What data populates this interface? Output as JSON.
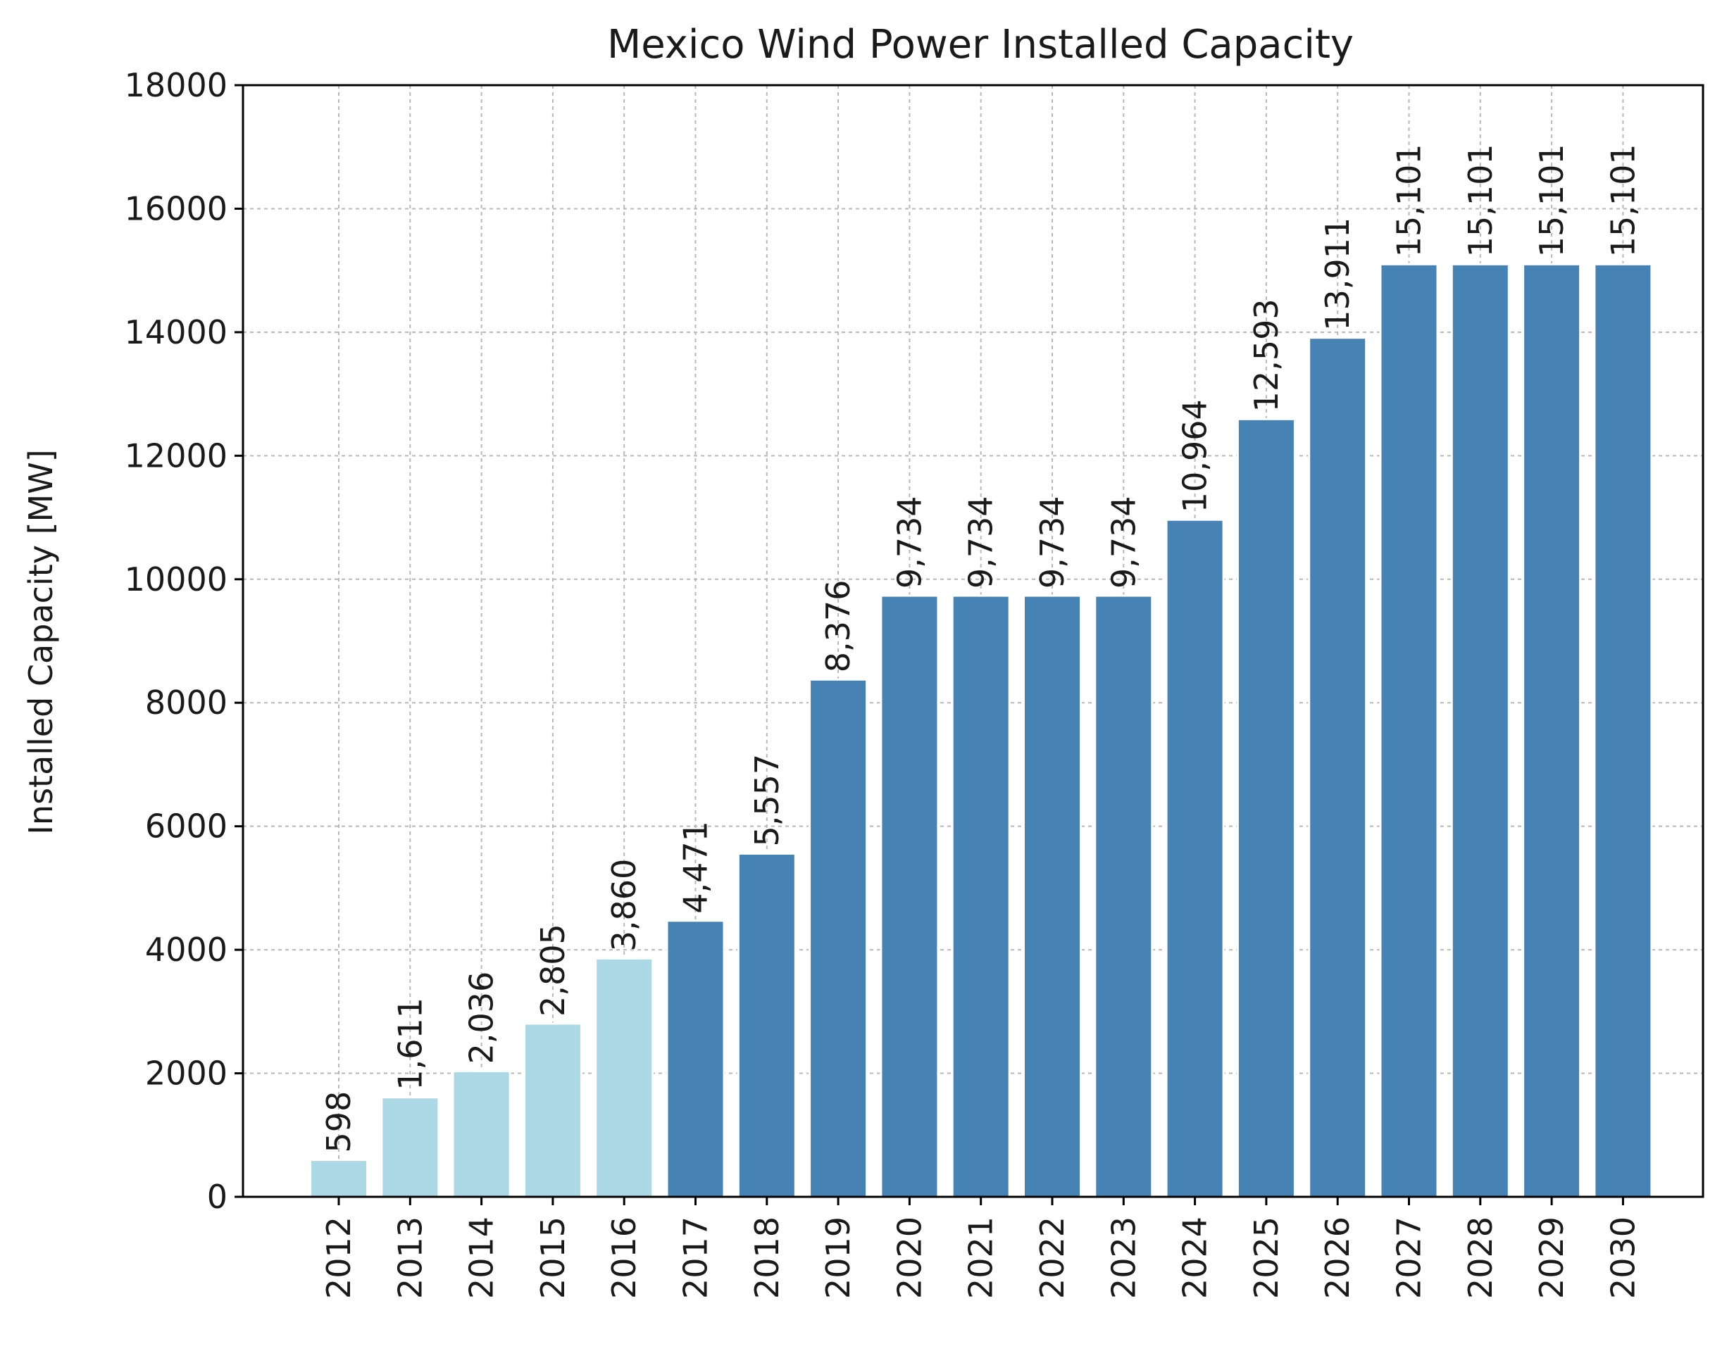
{
  "chart_data": {
    "type": "bar",
    "title": "Mexico Wind Power Installed Capacity",
    "xlabel": "",
    "ylabel": "Installed Capacity [MW]",
    "ylim": [
      0,
      18000
    ],
    "yticks": [
      0,
      2000,
      4000,
      6000,
      8000,
      10000,
      12000,
      14000,
      16000,
      18000
    ],
    "ytick_labels": [
      "0",
      "2000",
      "4000",
      "6000",
      "8000",
      "10000",
      "12000",
      "14000",
      "16000",
      "18000"
    ],
    "grid": true,
    "categories": [
      "2012",
      "2013",
      "2014",
      "2015",
      "2016",
      "2017",
      "2018",
      "2019",
      "2020",
      "2021",
      "2022",
      "2023",
      "2024",
      "2025",
      "2026",
      "2027",
      "2028",
      "2029",
      "2030"
    ],
    "values": [
      598,
      1611,
      2036,
      2805,
      3860,
      4471,
      5557,
      8376,
      9734,
      9734,
      9734,
      9734,
      10964,
      12593,
      13911,
      15101,
      15101,
      15101,
      15101
    ],
    "value_labels": [
      "598",
      "1,611",
      "2,036",
      "2,805",
      "3,860",
      "4,471",
      "5,557",
      "8,376",
      "9,734",
      "9,734",
      "9,734",
      "9,734",
      "10,964",
      "12,593",
      "13,911",
      "15,101",
      "15,101",
      "15,101",
      "15,101"
    ],
    "historical_years": [
      "2012",
      "2013",
      "2014",
      "2015",
      "2016"
    ],
    "colors": {
      "historical": "#add8e6",
      "projected": "#4682b4"
    }
  }
}
